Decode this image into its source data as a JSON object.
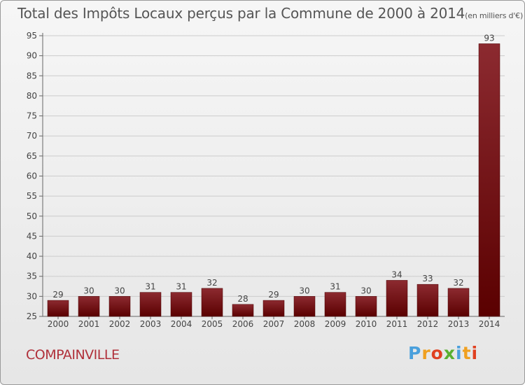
{
  "header": {
    "title": "Total des Impôts Locaux perçus par la Commune de 2000 à 2014",
    "unit": "(en milliers d'€)"
  },
  "commune": "COMPAINVILLE",
  "logo": {
    "letters": [
      "P",
      "r",
      "o",
      "x",
      "i",
      "t",
      "i"
    ],
    "colors": [
      "#4aa0dc",
      "#f0a020",
      "#e04020",
      "#5ab030",
      "#4aa0dc",
      "#f0a020",
      "#e04020"
    ]
  },
  "colors": {
    "bar_top": "#8c2a30",
    "bar_bottom": "#5a0000",
    "label": "#444444",
    "grid": "#cccccc"
  },
  "chart_data": {
    "type": "bar",
    "title": "Total des Impôts Locaux perçus par la Commune de 2000 à 2014",
    "ylabel": "en milliers d'€",
    "xlabel": "",
    "categories": [
      "2000",
      "2001",
      "2002",
      "2003",
      "2004",
      "2005",
      "2006",
      "2007",
      "2008",
      "2009",
      "2010",
      "2011",
      "2012",
      "2013",
      "2014"
    ],
    "values": [
      29,
      30,
      30,
      31,
      31,
      32,
      28,
      29,
      30,
      31,
      30,
      34,
      33,
      32,
      93
    ],
    "ylim": [
      25,
      95
    ],
    "yticks": [
      25,
      30,
      35,
      40,
      45,
      50,
      55,
      60,
      65,
      70,
      75,
      80,
      85,
      90,
      95
    ],
    "grid": true
  }
}
